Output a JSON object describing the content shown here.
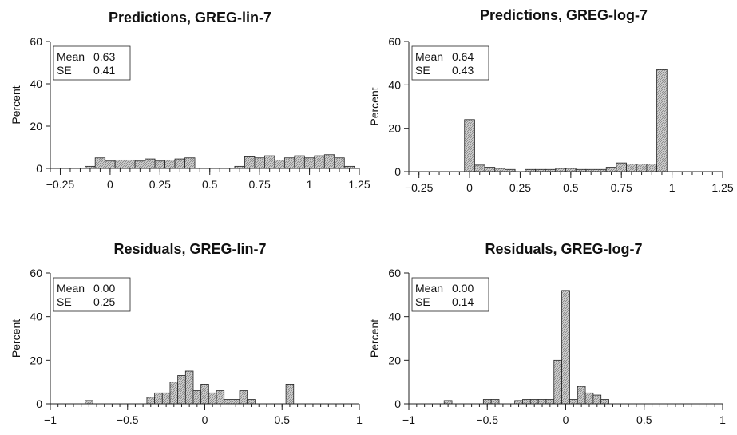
{
  "chart_data": [
    {
      "type": "bar",
      "title": "Predictions, GREG-lin-7",
      "ylabel": "Percent",
      "xlabel": "",
      "xlim": [
        -0.3,
        1.25
      ],
      "ylim": [
        0,
        60
      ],
      "xticks": [
        -0.25,
        0,
        0.25,
        0.5,
        0.75,
        1,
        1.25
      ],
      "xtick_labels": [
        "−0.25",
        "0",
        "0.25",
        "0.5",
        "0.75",
        "1",
        "1.25"
      ],
      "yticks": [
        0,
        20,
        40,
        60
      ],
      "ytick_labels": [
        "0",
        "20",
        "40",
        "60"
      ],
      "bin_width": 0.05,
      "bin_centers": [
        -0.1,
        -0.05,
        0,
        0.05,
        0.1,
        0.15,
        0.2,
        0.25,
        0.3,
        0.35,
        0.4,
        0.65,
        0.7,
        0.75,
        0.8,
        0.85,
        0.9,
        0.95,
        1.0,
        1.05,
        1.1,
        1.15,
        1.2
      ],
      "values": [
        1,
        5,
        3.5,
        4,
        4,
        3.5,
        4.5,
        3.5,
        4,
        4.5,
        5,
        1,
        5.5,
        5,
        6,
        4,
        5,
        6,
        5,
        6,
        6.5,
        5,
        1
      ],
      "stats": {
        "mean_label": "Mean",
        "mean": "0.63",
        "se_label": "SE",
        "se": "0.41"
      },
      "grid": false
    },
    {
      "type": "bar",
      "title": "Predictions, GREG-log-7",
      "ylabel": "Percent",
      "xlabel": "",
      "xlim": [
        -0.3,
        1.25
      ],
      "ylim": [
        0,
        60
      ],
      "xticks": [
        -0.25,
        0,
        0.25,
        0.5,
        0.75,
        1,
        1.25
      ],
      "xtick_labels": [
        "−0.25",
        "0",
        "0.25",
        "0.5",
        "0.75",
        "1",
        "1.25"
      ],
      "yticks": [
        0,
        20,
        40,
        60
      ],
      "ytick_labels": [
        "0",
        "20",
        "40",
        "60"
      ],
      "bin_width": 0.05,
      "bin_centers": [
        0,
        0.05,
        0.1,
        0.15,
        0.2,
        0.25,
        0.3,
        0.35,
        0.4,
        0.45,
        0.5,
        0.55,
        0.6,
        0.65,
        0.7,
        0.75,
        0.8,
        0.85,
        0.9,
        0.95
      ],
      "values": [
        24,
        3,
        2,
        1.5,
        1,
        0,
        1,
        1,
        1,
        1.5,
        1.5,
        1,
        1,
        1,
        2,
        4,
        3.5,
        3.5,
        3.5,
        47
      ],
      "stats": {
        "mean_label": "Mean",
        "mean": "0.64",
        "se_label": "SE",
        "se": "0.43"
      },
      "grid": false
    },
    {
      "type": "bar",
      "title": "Residuals, GREG-lin-7",
      "ylabel": "Percent",
      "xlabel": "",
      "xlim": [
        -1,
        1
      ],
      "ylim": [
        0,
        60
      ],
      "xticks": [
        -1,
        -0.5,
        0,
        0.5,
        1
      ],
      "xtick_labels": [
        "−1",
        "−0.5",
        "0",
        "0.5",
        "1"
      ],
      "yticks": [
        0,
        20,
        40,
        60
      ],
      "ytick_labels": [
        "0",
        "20",
        "40",
        "60"
      ],
      "bin_width": 0.05,
      "bin_centers": [
        -0.75,
        -0.35,
        -0.3,
        -0.25,
        -0.2,
        -0.15,
        -0.1,
        -0.05,
        0,
        0.05,
        0.1,
        0.15,
        0.2,
        0.25,
        0.3,
        0.55
      ],
      "values": [
        1.5,
        3,
        5,
        5,
        10,
        13,
        15,
        6,
        9,
        5,
        6,
        2,
        2,
        6,
        2,
        9
      ],
      "stats": {
        "mean_label": "Mean",
        "mean": "0.00",
        "se_label": "SE",
        "se": "0.25"
      },
      "grid": false
    },
    {
      "type": "bar",
      "title": "Residuals, GREG-log-7",
      "ylabel": "Percent",
      "xlabel": "",
      "xlim": [
        -1,
        1
      ],
      "ylim": [
        0,
        60
      ],
      "xticks": [
        -1,
        -0.5,
        0,
        0.5,
        1
      ],
      "xtick_labels": [
        "−1",
        "−0.5",
        "0",
        "0.5",
        "1"
      ],
      "yticks": [
        0,
        20,
        40,
        60
      ],
      "ytick_labels": [
        "0",
        "20",
        "40",
        "60"
      ],
      "bin_width": 0.05,
      "bin_centers": [
        -0.75,
        -0.5,
        -0.45,
        -0.3,
        -0.25,
        -0.2,
        -0.15,
        -0.1,
        -0.05,
        0,
        0.05,
        0.1,
        0.15,
        0.2,
        0.25
      ],
      "values": [
        1.5,
        2,
        2,
        1.5,
        2,
        2,
        2,
        2,
        20,
        52,
        2,
        8,
        5,
        4,
        2
      ],
      "stats": {
        "mean_label": "Mean",
        "mean": "0.00",
        "se_label": "SE",
        "se": "0.14"
      },
      "grid": false
    }
  ]
}
